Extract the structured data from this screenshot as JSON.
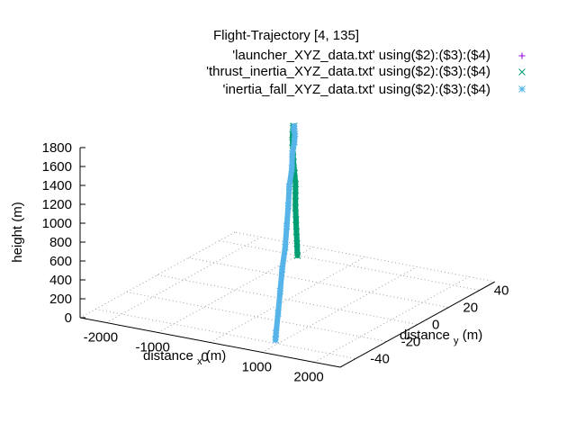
{
  "chart_data": {
    "type": "scatter",
    "title": "Flight-Trajectory [4, 135]",
    "xlabel": "distance x (m)",
    "ylabel": "distance y (m)",
    "zlabel": "height (m)",
    "view": [
      4,
      135
    ],
    "xlim": [
      -2500,
      2500
    ],
    "ylim": [
      -50,
      50
    ],
    "zlim": [
      0,
      1800
    ],
    "xticks": [
      "-2000",
      "-1000",
      "0",
      "1000",
      "2000"
    ],
    "xtick_values": [
      -2000,
      -1000,
      0,
      1000,
      2000
    ],
    "yticks": [
      "-40",
      "-20",
      "0",
      "20",
      "40"
    ],
    "ytick_values": [
      -40,
      -20,
      0,
      20,
      40
    ],
    "zticks": [
      "0",
      "200",
      "400",
      "600",
      "800",
      "1000",
      "1200",
      "1400",
      "1600",
      "1800"
    ],
    "ztick_values": [
      0,
      200,
      400,
      600,
      800,
      1000,
      1200,
      1400,
      1600,
      1800
    ],
    "grid": true,
    "legend_position": "top-right",
    "series": [
      {
        "name": "'launcher_XYZ_data.txt' using($2):($3):($4)",
        "marker": "+",
        "color": "#9400d3",
        "points": []
      },
      {
        "name": "'thrust_inertia_XYZ_data.txt' using($2):($3):($4)",
        "marker": "x",
        "color": "#009e73",
        "points": [
          [
            -1000,
            40,
            0
          ],
          [
            -950,
            38,
            150
          ],
          [
            -900,
            36,
            300
          ],
          [
            -850,
            34,
            450
          ],
          [
            -800,
            32,
            600
          ],
          [
            -740,
            30,
            750
          ],
          [
            -680,
            28,
            900
          ],
          [
            -610,
            25,
            1050
          ],
          [
            -540,
            22,
            1200
          ],
          [
            -460,
            19,
            1350
          ],
          [
            -380,
            16,
            1480
          ],
          [
            -290,
            13,
            1600
          ],
          [
            -190,
            10,
            1700
          ],
          [
            -100,
            7,
            1760
          ],
          [
            -20,
            5,
            1790
          ]
        ]
      },
      {
        "name": "'inertia_fall_XYZ_data.txt' using($2):($3):($4)",
        "marker": "*",
        "color": "#56b4e9",
        "points": [
          [
            -20,
            5,
            1790
          ],
          [
            60,
            2,
            1790
          ],
          [
            140,
            0,
            1770
          ],
          [
            220,
            -3,
            1720
          ],
          [
            300,
            -7,
            1640
          ],
          [
            380,
            -10,
            1520
          ],
          [
            450,
            -14,
            1370
          ],
          [
            520,
            -17,
            1200
          ],
          [
            580,
            -20,
            1020
          ],
          [
            640,
            -23,
            830
          ],
          [
            700,
            -27,
            640
          ],
          [
            750,
            -30,
            440
          ],
          [
            800,
            -33,
            240
          ],
          [
            850,
            -36,
            60
          ],
          [
            870,
            -37,
            0
          ]
        ]
      }
    ]
  }
}
